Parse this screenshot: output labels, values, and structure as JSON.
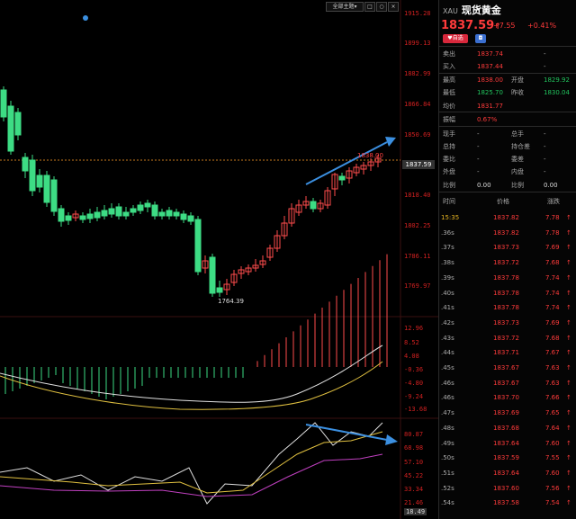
{
  "toolbar": {
    "main_fig_label": "全部主题",
    "icon1": "▾",
    "icon2": "□",
    "icon3": "○",
    "icon4": "×"
  },
  "axis": {
    "price_ticks": [
      "1915.28",
      "1899.13",
      "1882.99",
      "1866.84",
      "1850.69",
      "1834.54",
      "1818.40",
      "1802.25",
      "1786.11",
      "1769.97"
    ],
    "macd_ticks": [
      "12.96",
      "8.52",
      "4.08",
      "-0.36",
      "-4.80",
      "-9.24",
      "-13.68"
    ],
    "kdj_ticks": [
      "80.87",
      "68.98",
      "57.10",
      "45.22",
      "33.34",
      "21.46",
      "18.49"
    ],
    "current_price_tag": "1837.59",
    "low_label": "1764.39",
    "high_label": "1838.00"
  },
  "header": {
    "code": "XAU",
    "name": "现货黄金",
    "price": "1837.59",
    "arrow": "↑",
    "change": "+7.55",
    "pct": "+0.41%",
    "btn1": "自选",
    "btn2": "◘"
  },
  "quote": {
    "rows": [
      {
        "l1": "卖出",
        "v1": "1837.74",
        "l2": "",
        "v2": "-"
      },
      {
        "l1": "买入",
        "v1": "1837.44",
        "l2": "",
        "v2": "-"
      },
      {
        "l1": "最高",
        "v1": "1838.00",
        "l2": "开盘",
        "v2": "1829.92"
      },
      {
        "l1": "最低",
        "v1": "1825.70",
        "l2": "昨收",
        "v2": "1830.04"
      },
      {
        "l1": "均价",
        "v1": "1831.77",
        "l2": "",
        "v2": ""
      },
      {
        "l1": "振幅",
        "v1": "0.67%",
        "l2": "",
        "v2": ""
      },
      {
        "l1": "现手",
        "v1": "-",
        "l2": "总手",
        "v2": "-"
      },
      {
        "l1": "总持",
        "v1": "-",
        "l2": "持仓差",
        "v2": "-"
      },
      {
        "l1": "委比",
        "v1": "-",
        "l2": "委差",
        "v2": "-"
      },
      {
        "l1": "外盘",
        "v1": "-",
        "l2": "内盘",
        "v2": "-"
      },
      {
        "l1": "比例",
        "v1": "0.00",
        "l2": "比例",
        "v2": "0.00"
      }
    ]
  },
  "ticks": {
    "headers": {
      "time": "时间",
      "price": "价格",
      "change": "涨跌"
    },
    "rows": [
      {
        "t": "15:35",
        "p": "1837.82",
        "c": "7.78"
      },
      {
        "t": ".36s",
        "p": "1837.82",
        "c": "7.78"
      },
      {
        "t": ".37s",
        "p": "1837.73",
        "c": "7.69"
      },
      {
        "t": ".38s",
        "p": "1837.72",
        "c": "7.68"
      },
      {
        "t": ".39s",
        "p": "1837.78",
        "c": "7.74"
      },
      {
        "t": ".40s",
        "p": "1837.78",
        "c": "7.74"
      },
      {
        "t": ".41s",
        "p": "1837.78",
        "c": "7.74"
      },
      {
        "t": ".42s",
        "p": "1837.73",
        "c": "7.69"
      },
      {
        "t": ".43s",
        "p": "1837.72",
        "c": "7.68"
      },
      {
        "t": ".44s",
        "p": "1837.71",
        "c": "7.67"
      },
      {
        "t": ".45s",
        "p": "1837.67",
        "c": "7.63"
      },
      {
        "t": ".46s",
        "p": "1837.67",
        "c": "7.63"
      },
      {
        "t": ".46s",
        "p": "1837.70",
        "c": "7.66"
      },
      {
        "t": ".47s",
        "p": "1837.69",
        "c": "7.65"
      },
      {
        "t": ".48s",
        "p": "1837.68",
        "c": "7.64"
      },
      {
        "t": ".49s",
        "p": "1837.64",
        "c": "7.60"
      },
      {
        "t": ".50s",
        "p": "1837.59",
        "c": "7.55"
      },
      {
        "t": ".51s",
        "p": "1837.64",
        "c": "7.60"
      },
      {
        "t": ".52s",
        "p": "1837.60",
        "c": "7.56"
      },
      {
        "t": ".54s",
        "p": "1837.58",
        "c": "7.54"
      }
    ],
    "arrow": "↑"
  },
  "colors": {
    "up": "#ff3b3b",
    "down": "#3ddc84",
    "accent_arrow": "#3b8fe0"
  }
}
